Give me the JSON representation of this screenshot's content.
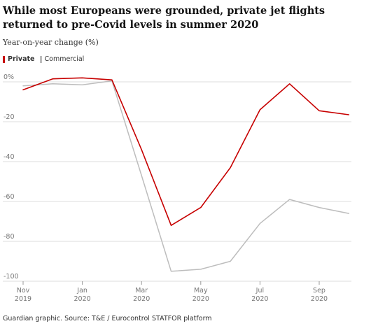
{
  "title": "While most Europeans were grounded, private jet flights returned to pre-Covid levels in summer 2020",
  "subtitle": "Year-on-year change (%)",
  "source": "Guardian graphic. Source: T&E / Eurocontrol STATFOR platform",
  "colors": {
    "private": "#c70000",
    "commercial": "#bdbdbd",
    "grid": "#dcdcdc",
    "axis_text": "#767676"
  },
  "chart_data": {
    "type": "line",
    "title": "While most Europeans were grounded, private jet flights returned to pre-Covid levels in summer 2020",
    "ylabel": "Year-on-year change (%)",
    "xlabel": "",
    "ylim": [
      -100,
      0
    ],
    "yticks": [
      0,
      -20,
      -40,
      -60,
      -80,
      -100
    ],
    "ytick_labels": [
      "0%",
      "-20",
      "-40",
      "-60",
      "-80",
      "-100"
    ],
    "x": [
      "2019-11",
      "2019-12",
      "2020-01",
      "2020-02",
      "2020-03",
      "2020-04",
      "2020-05",
      "2020-06",
      "2020-07",
      "2020-08",
      "2020-09",
      "2020-10"
    ],
    "xticks": [
      {
        "month": "Nov",
        "year": "2019"
      },
      {
        "month": "Jan",
        "year": "2020"
      },
      {
        "month": "Mar",
        "year": "2020"
      },
      {
        "month": "May",
        "year": "2020"
      },
      {
        "month": "Jul",
        "year": "2020"
      },
      {
        "month": "Sep",
        "year": "2020"
      }
    ],
    "legend": "top-left",
    "grid": true,
    "series": [
      {
        "name": "Private",
        "values": [
          -4,
          1.5,
          2,
          1,
          -34,
          -72,
          -63,
          -43,
          -14,
          -1,
          -14.5,
          -16.5
        ]
      },
      {
        "name": "Commercial",
        "values": [
          -2,
          -1,
          -1.5,
          0.5,
          -47,
          -95,
          -94,
          -90,
          -71,
          -59,
          -63,
          -66
        ]
      }
    ]
  }
}
